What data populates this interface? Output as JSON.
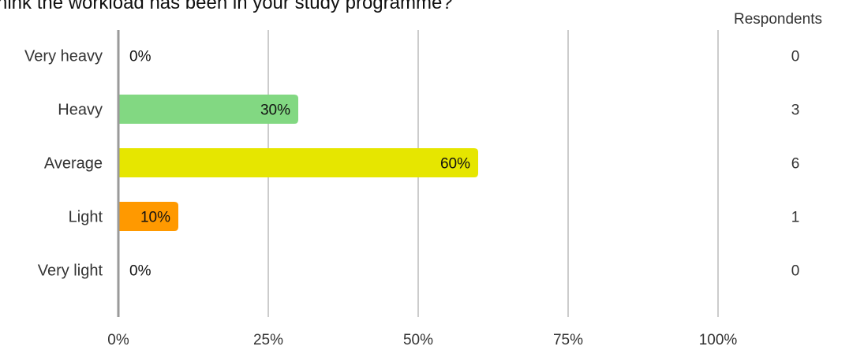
{
  "title": "hink the workload has been in your study programme?",
  "respondents_header": "Respondents",
  "chart_data": {
    "type": "bar",
    "orientation": "horizontal",
    "categories": [
      "Very heavy",
      "Heavy",
      "Average",
      "Light",
      "Very light"
    ],
    "values": [
      0,
      30,
      60,
      10,
      0
    ],
    "value_labels": [
      "0%",
      "30%",
      "60%",
      "10%",
      "0%"
    ],
    "respondents": [
      "0",
      "3",
      "6",
      "1",
      "0"
    ],
    "colors": [
      "#82d882",
      "#82d882",
      "#e6e600",
      "#ff9900",
      "#82d882"
    ],
    "xlim": [
      0,
      100
    ],
    "xticks": [
      "0%",
      "25%",
      "50%",
      "75%",
      "100%"
    ],
    "grid": true
  }
}
